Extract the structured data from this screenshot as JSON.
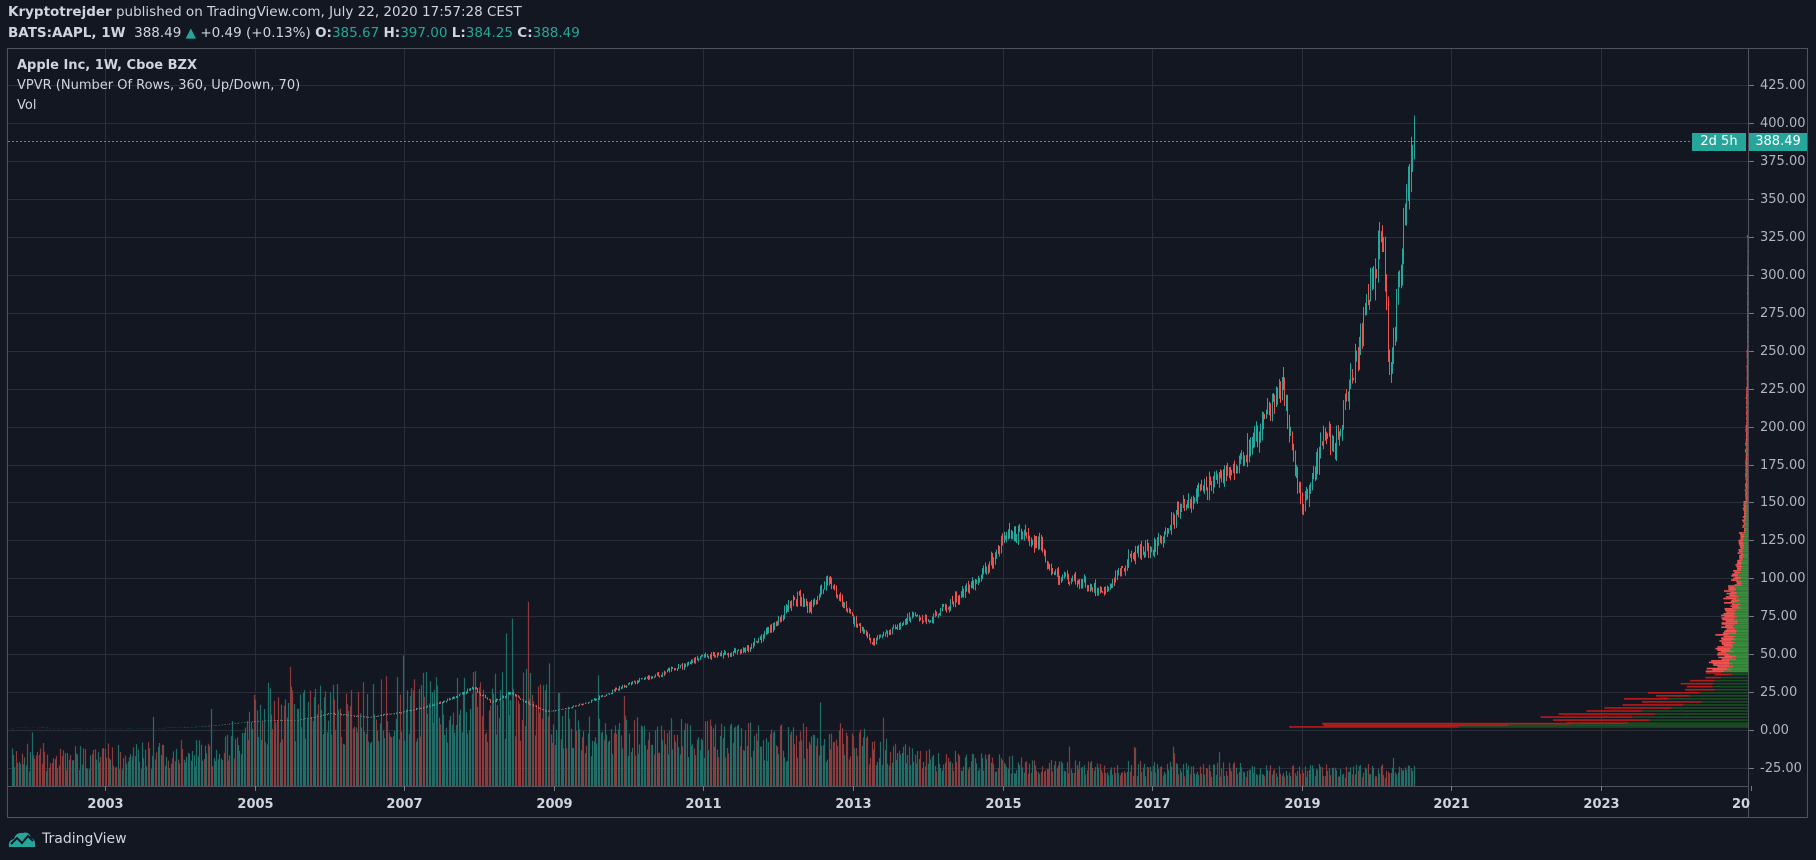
{
  "header": {
    "author": "Kryptotrejder",
    "published": "published on TradingView.com, July 22, 2020 17:57:28 CEST",
    "symbol": "BATS:AAPL, 1W",
    "last": "388.49",
    "change": "+0.49 (+0.13%)",
    "o_label": "O:",
    "o": "385.67",
    "h_label": "H:",
    "h": "397.00",
    "l_label": "L:",
    "l": "384.25",
    "c_label": "C:",
    "c": "388.49",
    "up_arrow_icon": "triangle-up-icon"
  },
  "legend": {
    "title": "Apple Inc, 1W, Cboe BZX",
    "vpvr": "VPVR (Number Of Rows, 360, Up/Down, 70)",
    "vol": "Vol"
  },
  "price_tag": {
    "value": "388.49",
    "countdown": "2d 5h"
  },
  "brand": {
    "name": "TradingView",
    "logo_icon": "tradingview-logo-icon"
  },
  "colors": {
    "background": "#131722",
    "up": "#26a69a",
    "down": "#ef5350",
    "grid": "#2a2e39",
    "vpvr_up_bright": "#388e3c",
    "vpvr_down_bright": "#ef5350",
    "vpvr_up_dark": "#1b4d22",
    "vpvr_down_dark": "#b71c1c"
  },
  "chart_data": {
    "type": "candlestick",
    "interval": "1W",
    "grid": true,
    "y_ticks": [
      "425.00",
      "400.00",
      "375.00",
      "350.00",
      "325.00",
      "300.00",
      "275.00",
      "250.00",
      "225.00",
      "200.00",
      "175.00",
      "150.00",
      "125.00",
      "100.00",
      "75.00",
      "50.00",
      "25.00",
      "0.00",
      "-25.00"
    ],
    "x_ticks": [
      "2003",
      "2005",
      "2007",
      "2009",
      "2011",
      "2013",
      "2015",
      "2017",
      "2019",
      "2021",
      "2023",
      "20"
    ],
    "ylim": [
      -40,
      445
    ],
    "xlim": [
      "2001-09",
      "2025-04"
    ],
    "price_path": [
      [
        "2001-10",
        1.3
      ],
      [
        "2002-01",
        1.6
      ],
      [
        "2002-06",
        1.1
      ],
      [
        "2003-04",
        1.0
      ],
      [
        "2004-01",
        1.5
      ],
      [
        "2004-10",
        4.5
      ],
      [
        "2005-02",
        6
      ],
      [
        "2005-08",
        6.5
      ],
      [
        "2006-01",
        11
      ],
      [
        "2006-07",
        8.5
      ],
      [
        "2007-01",
        12
      ],
      [
        "2007-06",
        17
      ],
      [
        "2007-12",
        28
      ],
      [
        "2008-03",
        18
      ],
      [
        "2008-06",
        25
      ],
      [
        "2008-12",
        12
      ],
      [
        "2009-03",
        14
      ],
      [
        "2009-12",
        29
      ],
      [
        "2010-06",
        37
      ],
      [
        "2011-01",
        48
      ],
      [
        "2011-08",
        53
      ],
      [
        "2012-04",
        88
      ],
      [
        "2012-06",
        80
      ],
      [
        "2012-09",
        100
      ],
      [
        "2013-04",
        57
      ],
      [
        "2013-10",
        75
      ],
      [
        "2014-01",
        72
      ],
      [
        "2014-09",
        100
      ],
      [
        "2015-02",
        130
      ],
      [
        "2015-07",
        124
      ],
      [
        "2015-08",
        105
      ],
      [
        "2016-05",
        92
      ],
      [
        "2016-10",
        116
      ],
      [
        "2017-01",
        120
      ],
      [
        "2017-06",
        148
      ],
      [
        "2018-01",
        170
      ],
      [
        "2018-05",
        190
      ],
      [
        "2018-10",
        228
      ],
      [
        "2019-01",
        145
      ],
      [
        "2019-05",
        200
      ],
      [
        "2019-06",
        185
      ],
      [
        "2019-12",
        290
      ],
      [
        "2020-02",
        325
      ],
      [
        "2020-03",
        235
      ],
      [
        "2020-06",
        355
      ],
      [
        "2020-07",
        388.49
      ]
    ],
    "last_price": 388.49,
    "volume_level": [
      [
        "2001-10",
        35
      ],
      [
        "2004-06",
        45
      ],
      [
        "2005-01",
        95
      ],
      [
        "2007-01",
        105
      ],
      [
        "2008-09",
        110
      ],
      [
        "2009-06",
        70
      ],
      [
        "2011-01",
        62
      ],
      [
        "2013-01",
        58
      ],
      [
        "2014-01",
        35
      ],
      [
        "2016-01",
        24
      ],
      [
        "2020-07",
        20
      ]
    ],
    "vpvr_rows": [
      [
        1.5,
        53,
        47
      ],
      [
        4,
        25,
        20
      ],
      [
        6,
        20,
        18
      ],
      [
        8,
        23,
        20
      ],
      [
        10,
        22,
        19
      ],
      [
        12,
        22,
        18
      ],
      [
        14,
        18,
        16
      ],
      [
        16,
        20,
        14
      ],
      [
        18,
        15,
        14
      ],
      [
        20,
        17,
        12
      ],
      [
        22,
        12,
        10
      ],
      [
        24,
        14,
        12
      ],
      [
        26,
        10,
        8
      ],
      [
        28,
        9,
        7
      ],
      [
        30,
        8,
        6
      ],
      [
        32,
        7,
        5
      ],
      [
        34,
        6,
        4
      ],
      [
        36,
        5,
        4
      ],
      [
        40,
        5,
        4
      ],
      [
        44,
        4,
        4
      ],
      [
        48,
        4,
        3
      ],
      [
        52,
        4,
        3
      ],
      [
        56,
        3.5,
        3
      ],
      [
        60,
        3.5,
        3
      ],
      [
        65,
        3,
        2.5
      ],
      [
        70,
        3,
        3
      ],
      [
        75,
        3,
        2.5
      ],
      [
        80,
        2.5,
        2
      ],
      [
        85,
        2.5,
        2.5
      ],
      [
        90,
        2.5,
        2
      ],
      [
        95,
        2,
        1.5
      ],
      [
        100,
        2,
        1.5
      ],
      [
        105,
        1.5,
        1.2
      ],
      [
        110,
        1.5,
        1
      ],
      [
        115,
        1.2,
        1
      ],
      [
        120,
        1,
        1
      ],
      [
        125,
        1,
        0.8
      ],
      [
        130,
        0.6,
        0.6
      ],
      [
        140,
        0.4,
        0.6
      ],
      [
        150,
        0.3,
        0.4
      ],
      [
        160,
        0.3,
        0.3
      ],
      [
        175,
        0.3,
        0.3
      ],
      [
        190,
        0.2,
        0.3
      ],
      [
        200,
        0.2,
        0.2
      ],
      [
        215,
        0.2,
        0.3
      ],
      [
        225,
        0.1,
        0.2
      ],
      [
        250,
        0.1,
        0.1
      ],
      [
        300,
        0.05,
        0.1
      ],
      [
        325,
        0.1,
        0.2
      ]
    ]
  }
}
